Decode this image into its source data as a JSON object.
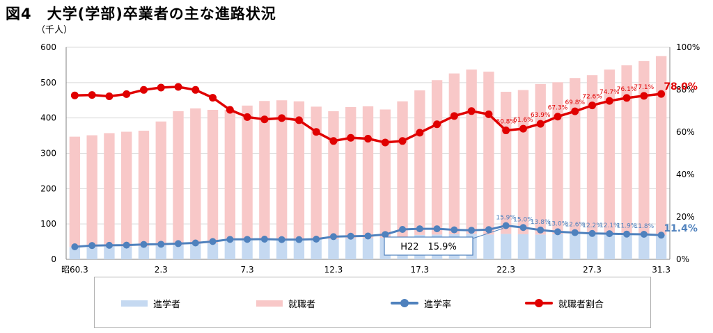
{
  "title": "図4　大学(学部)卒業者の主な進路状況",
  "y_unit": "（千人）",
  "colors": {
    "enrollees": "#c5d9f1",
    "employed": "#f8c8c8",
    "enroll_rate": "#4f81bd",
    "employ_rate": "#e00000",
    "grid": "#d9d9d9"
  },
  "legend": [
    {
      "key": "enrollees",
      "label": "進学者"
    },
    {
      "key": "employed",
      "label": "就職者"
    },
    {
      "key": "enroll_rate",
      "label": "進学率"
    },
    {
      "key": "employ_rate",
      "label": "就職者割合"
    }
  ],
  "callout": "H22　15.9%",
  "chart_data": {
    "type": "bar",
    "categories": [
      "昭60.3",
      "61.3",
      "62.3",
      "63.3",
      "平元.3",
      "2.3",
      "3.3",
      "4.3",
      "5.3",
      "6.3",
      "7.3",
      "8.3",
      "9.3",
      "10.3",
      "11.3",
      "12.3",
      "13.3",
      "14.3",
      "15.3",
      "16.3",
      "17.3",
      "18.3",
      "19.3",
      "20.3",
      "21.3",
      "22.3",
      "23.3",
      "24.3",
      "25.3",
      "26.3",
      "27.3",
      "28.3",
      "29.3",
      "30.3",
      "31.3"
    ],
    "x_tick_labels": [
      "昭60.3",
      "2.3",
      "7.3",
      "12.3",
      "17.3",
      "22.3",
      "27.3",
      "31.3"
    ],
    "x_tick_categories": [
      "昭60.3",
      "2.3",
      "7.3",
      "12.3",
      "17.3",
      "22.3",
      "27.3",
      "31.3"
    ],
    "left_ylim": [
      0,
      600
    ],
    "left_ticks": [
      0,
      100,
      200,
      300,
      400,
      500,
      600
    ],
    "right_ylim": [
      0,
      100
    ],
    "right_ticks": [
      "0%",
      "20%",
      "40%",
      "60%",
      "80%",
      "100%"
    ],
    "right_tick_values": [
      0,
      20,
      40,
      60,
      80,
      100
    ],
    "series": [
      {
        "name": "進学者",
        "type": "bar",
        "axis": "left",
        "values": [
          35,
          35,
          36,
          36,
          37,
          39,
          41,
          43,
          45,
          53,
          56,
          59,
          58,
          57,
          58,
          57,
          59,
          60,
          61,
          63,
          69,
          70,
          71,
          72,
          70,
          72,
          71,
          70,
          71,
          72,
          72,
          70,
          70,
          69,
          69
        ]
      },
      {
        "name": "就職者",
        "type": "bar",
        "axis": "left",
        "values": [
          312,
          316,
          321,
          325,
          327,
          351,
          378,
          384,
          378,
          370,
          379,
          389,
          392,
          390,
          374,
          362,
          372,
          373,
          363,
          384,
          409,
          437,
          455,
          465,
          461,
          402,
          408,
          426,
          430,
          441,
          449,
          467,
          479,
          492,
          506
        ]
      },
      {
        "name": "進学率",
        "type": "line",
        "axis": "right",
        "values": [
          5.9,
          6.5,
          6.6,
          6.7,
          7.0,
          7.1,
          7.4,
          7.7,
          8.4,
          9.4,
          9.4,
          9.5,
          9.3,
          9.3,
          9.5,
          10.7,
          10.9,
          11.0,
          11.7,
          14.1,
          14.4,
          14.4,
          13.9,
          13.7,
          14.0,
          15.9,
          15.0,
          13.8,
          13.0,
          12.6,
          12.2,
          12.1,
          11.9,
          11.8,
          11.4
        ]
      },
      {
        "name": "就職者割合",
        "type": "line",
        "axis": "right",
        "values": [
          77.3,
          77.5,
          76.9,
          77.9,
          79.9,
          81.0,
          81.3,
          79.9,
          76.2,
          70.5,
          67.1,
          66.0,
          66.6,
          65.6,
          60.1,
          55.8,
          57.3,
          56.9,
          55.1,
          55.8,
          59.7,
          63.7,
          67.6,
          69.9,
          68.4,
          60.8,
          61.6,
          63.9,
          67.3,
          69.8,
          72.6,
          74.7,
          76.1,
          77.1,
          78.0
        ]
      }
    ],
    "data_labels": [
      {
        "series": "就職者割合",
        "index": 25,
        "text": "60.8%"
      },
      {
        "series": "就職者割合",
        "index": 26,
        "text": "61.6%"
      },
      {
        "series": "就職者割合",
        "index": 27,
        "text": "63.9%"
      },
      {
        "series": "就職者割合",
        "index": 28,
        "text": "67.3%"
      },
      {
        "series": "就職者割合",
        "index": 29,
        "text": "69.8%"
      },
      {
        "series": "就職者割合",
        "index": 30,
        "text": "72.6%"
      },
      {
        "series": "就職者割合",
        "index": 31,
        "text": "74.7%"
      },
      {
        "series": "就職者割合",
        "index": 32,
        "text": "76.1%"
      },
      {
        "series": "就職者割合",
        "index": 33,
        "text": "77.1%"
      },
      {
        "series": "就職者割合",
        "index": 34,
        "text": "78.0%",
        "emphasis": true
      },
      {
        "series": "進学率",
        "index": 25,
        "text": "15.9%"
      },
      {
        "series": "進学率",
        "index": 26,
        "text": "15.0%"
      },
      {
        "series": "進学率",
        "index": 27,
        "text": "13.8%"
      },
      {
        "series": "進学率",
        "index": 28,
        "text": "13.0%"
      },
      {
        "series": "進学率",
        "index": 29,
        "text": "12.6%"
      },
      {
        "series": "進学率",
        "index": 30,
        "text": "12.2%"
      },
      {
        "series": "進学率",
        "index": 31,
        "text": "12.1%"
      },
      {
        "series": "進学率",
        "index": 32,
        "text": "11.9%"
      },
      {
        "series": "進学率",
        "index": 33,
        "text": "11.8%"
      },
      {
        "series": "進学率",
        "index": 34,
        "text": "11.4%",
        "emphasis": true
      }
    ],
    "grid": true,
    "legend_position": "bottom"
  }
}
